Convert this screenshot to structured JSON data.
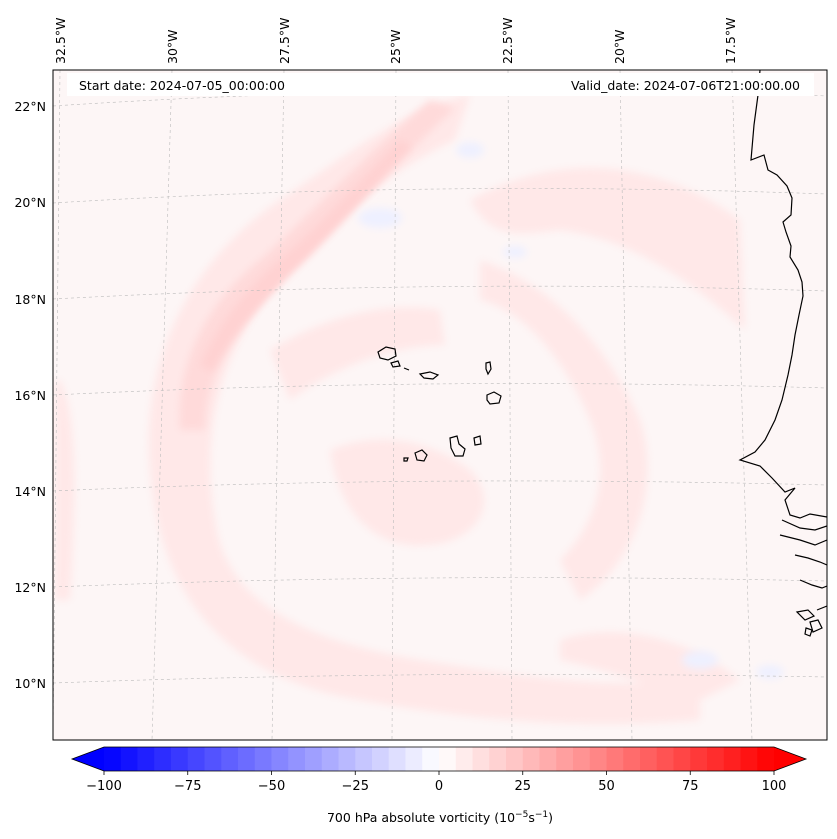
{
  "header": {
    "start_date": "Start date: 2024-07-05_00:00:00",
    "valid_date": "Valid_date: 2024-07-06T21:00:00.00"
  },
  "map": {
    "longitude_labels": [
      "32.5°W",
      "30°W",
      "27.5°W",
      "25°W",
      "22.5°W",
      "20°W",
      "17.5°W"
    ],
    "latitude_labels": [
      "22°N",
      "20°N",
      "18°N",
      "16°N",
      "14°N",
      "12°N",
      "10°N"
    ],
    "colors": {
      "background_field": "#fdf6f6",
      "weak_positive": "#ffe4e4",
      "moderate_positive": "#ffd6d6",
      "weak_negative": "#eef0ff",
      "coastline": "#000000",
      "gridline": "#bbbbbb"
    },
    "features": [
      "cape-verde-islands",
      "west-african-coastline",
      "vorticity-band"
    ]
  },
  "colorbar": {
    "label": "700 hPa absolute vorticity (10⁻⁵s⁻¹)",
    "label_parts": {
      "prefix": "700 hPa absolute vorticity (10",
      "exp1": "−5",
      "mid": "s",
      "exp2": "−1",
      "suffix": ")"
    },
    "ticks": [
      "−100",
      "−75",
      "−50",
      "−25",
      "0",
      "25",
      "50",
      "75",
      "100"
    ],
    "tick_values": [
      -100,
      -75,
      -50,
      -25,
      0,
      25,
      50,
      75,
      100
    ],
    "vmin": -100,
    "vmax": 100,
    "levels": 40,
    "color_low": "#0000ff",
    "color_mid": "#ffffff",
    "color_high": "#ff0000",
    "extend": "both"
  }
}
